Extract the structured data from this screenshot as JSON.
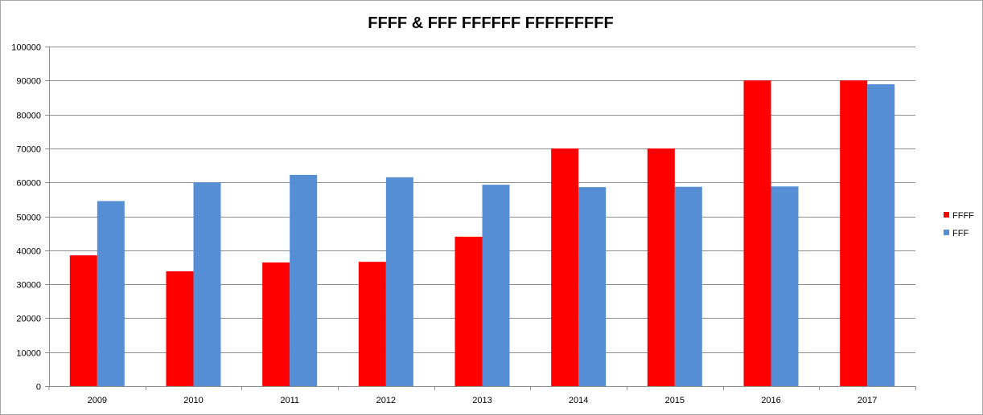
{
  "chart_data": {
    "type": "bar",
    "title": "FFFF & FFF FFFFFF FFFFFFFFF",
    "xlabel": "",
    "ylabel": "",
    "categories": [
      "2009",
      "2010",
      "2011",
      "2012",
      "2013",
      "2014",
      "2015",
      "2016",
      "2017"
    ],
    "series": [
      {
        "name": "FFFF",
        "color": "#ff0000",
        "values": [
          38500,
          33800,
          36400,
          36600,
          44000,
          70000,
          70000,
          90000,
          90000
        ]
      },
      {
        "name": "FFF",
        "color": "#558ed5",
        "values": [
          54500,
          60000,
          62200,
          61500,
          59300,
          58600,
          58700,
          58800,
          88900
        ]
      }
    ],
    "ylim": [
      0,
      100000
    ],
    "yticks": [
      "0",
      "10000",
      "20000",
      "30000",
      "40000",
      "50000",
      "60000",
      "70000",
      "80000",
      "90000",
      "100000"
    ],
    "grid": true,
    "legend": "right"
  }
}
